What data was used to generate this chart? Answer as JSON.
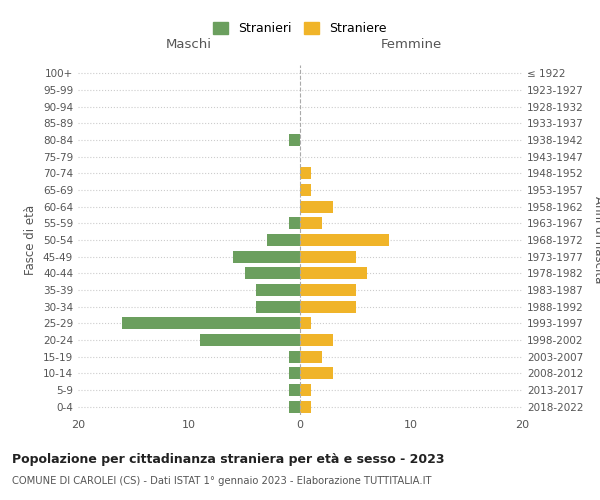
{
  "age_groups": [
    "100+",
    "95-99",
    "90-94",
    "85-89",
    "80-84",
    "75-79",
    "70-74",
    "65-69",
    "60-64",
    "55-59",
    "50-54",
    "45-49",
    "40-44",
    "35-39",
    "30-34",
    "25-29",
    "20-24",
    "15-19",
    "10-14",
    "5-9",
    "0-4"
  ],
  "birth_years": [
    "≤ 1922",
    "1923-1927",
    "1928-1932",
    "1933-1937",
    "1938-1942",
    "1943-1947",
    "1948-1952",
    "1953-1957",
    "1958-1962",
    "1963-1967",
    "1968-1972",
    "1973-1977",
    "1978-1982",
    "1983-1987",
    "1988-1992",
    "1993-1997",
    "1998-2002",
    "2003-2007",
    "2008-2012",
    "2013-2017",
    "2018-2022"
  ],
  "maschi": [
    0,
    0,
    0,
    0,
    1,
    0,
    0,
    0,
    0,
    1,
    3,
    6,
    5,
    4,
    4,
    16,
    9,
    1,
    1,
    1,
    1
  ],
  "femmine": [
    0,
    0,
    0,
    0,
    0,
    0,
    1,
    1,
    3,
    2,
    8,
    5,
    6,
    5,
    5,
    1,
    3,
    2,
    3,
    1,
    1
  ],
  "color_maschi": "#6b9f5e",
  "color_femmine": "#f0b429",
  "title": "Popolazione per cittadinanza straniera per età e sesso - 2023",
  "subtitle": "COMUNE DI CAROLEI (CS) - Dati ISTAT 1° gennaio 2023 - Elaborazione TUTTITALIA.IT",
  "label_maschi": "Maschi",
  "label_femmine": "Femmine",
  "ylabel_left": "Fasce di età",
  "ylabel_right": "Anni di nascita",
  "legend_maschi": "Stranieri",
  "legend_femmine": "Straniere",
  "xlim": 20,
  "bg_color": "#ffffff",
  "grid_color": "#cccccc",
  "bar_height": 0.72
}
